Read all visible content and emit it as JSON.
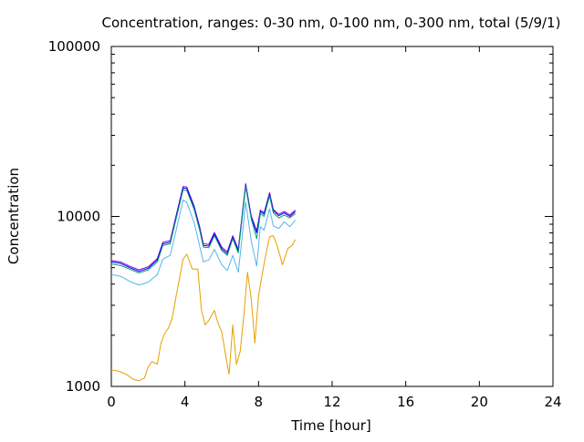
{
  "chart_data": {
    "type": "line",
    "title": "Concentration, ranges: 0-30 nm, 0-100 nm, 0-300 nm, total (5/9/1)",
    "xlabel": "Time [hour]",
    "ylabel": "Concentration",
    "xlim": [
      0,
      24
    ],
    "ylim": [
      1000,
      100000
    ],
    "yscale": "log",
    "grid": false,
    "legend": "none",
    "x_ticks": [
      0,
      4,
      8,
      12,
      16,
      20,
      24
    ],
    "x_tick_labels": [
      "0",
      "4",
      "8",
      "12",
      "16",
      "20",
      "24"
    ],
    "y_tick_labels": [
      "1000",
      "10000",
      "100000"
    ],
    "y_major_ticks": [
      1000,
      10000,
      100000
    ],
    "y_minor_ticks": [
      2000,
      3000,
      4000,
      5000,
      6000,
      7000,
      8000,
      9000,
      20000,
      30000,
      40000,
      50000,
      60000,
      70000,
      80000,
      90000
    ],
    "series": [
      {
        "color": "#9400d3",
        "x": [
          0,
          0.5,
          1.0,
          1.5,
          2.0,
          2.5,
          2.8,
          3.2,
          3.6,
          3.9,
          4.1,
          4.5,
          4.8,
          5.0,
          5.3,
          5.6,
          6.0,
          6.3,
          6.6,
          6.9,
          7.1,
          7.3,
          7.6,
          7.9,
          8.1,
          8.3,
          8.6,
          8.8,
          9.1,
          9.4,
          9.7,
          10.0
        ],
        "y": [
          5500,
          5400,
          5100,
          4850,
          5050,
          5650,
          7050,
          7200,
          11000,
          15000,
          14900,
          11500,
          8700,
          6900,
          6850,
          8050,
          6600,
          6200,
          7700,
          6400,
          10000,
          15600,
          10100,
          8200,
          10900,
          10500,
          13800,
          11000,
          10300,
          10700,
          10200,
          10900
        ]
      },
      {
        "color": "#0000ff",
        "x": [
          0,
          0.5,
          1.0,
          1.5,
          2.0,
          2.5,
          2.8,
          3.2,
          3.6,
          3.9,
          4.1,
          4.5,
          4.8,
          5.0,
          5.3,
          5.6,
          6.0,
          6.3,
          6.6,
          6.9,
          7.1,
          7.3,
          7.6,
          7.9,
          8.1,
          8.3,
          8.6,
          8.8,
          9.1,
          9.4,
          9.7,
          10.0
        ],
        "y": [
          5400,
          5300,
          5000,
          4750,
          4950,
          5550,
          6900,
          7050,
          10800,
          14700,
          14600,
          11300,
          8500,
          6750,
          6700,
          7900,
          6450,
          6050,
          7550,
          6250,
          9800,
          15300,
          9900,
          8000,
          10700,
          10300,
          13500,
          10800,
          10100,
          10500,
          10000,
          10700
        ]
      },
      {
        "color": "#009e73",
        "x": [
          0,
          0.5,
          1.0,
          1.5,
          2.0,
          2.5,
          2.8,
          3.2,
          3.6,
          3.9,
          4.1,
          4.5,
          4.8,
          5.0,
          5.3,
          5.6,
          6.0,
          6.3,
          6.6,
          6.9,
          7.1,
          7.3,
          7.6,
          7.9,
          8.1,
          8.3,
          8.6,
          8.8,
          9.1,
          9.4,
          9.7,
          10.0
        ],
        "y": [
          5250,
          5150,
          4900,
          4650,
          4850,
          5400,
          6750,
          6900,
          10500,
          14300,
          14200,
          11000,
          8300,
          6600,
          6550,
          7700,
          6300,
          5900,
          7400,
          6100,
          9600,
          15000,
          9700,
          7400,
          10400,
          10000,
          13200,
          10500,
          9800,
          10200,
          9800,
          10400
        ]
      },
      {
        "color": "#56b4e9",
        "x": [
          0,
          0.5,
          1.0,
          1.5,
          2.0,
          2.5,
          2.8,
          3.2,
          3.6,
          3.9,
          4.1,
          4.5,
          4.8,
          5.0,
          5.3,
          5.6,
          6.0,
          6.3,
          6.6,
          6.9,
          7.1,
          7.3,
          7.6,
          7.9,
          8.1,
          8.3,
          8.6,
          8.8,
          9.1,
          9.4,
          9.7,
          10.0
        ],
        "y": [
          4550,
          4450,
          4150,
          3950,
          4100,
          4550,
          5600,
          5900,
          9000,
          12500,
          12100,
          9200,
          6700,
          5400,
          5550,
          6400,
          5200,
          4800,
          5900,
          4700,
          7400,
          12200,
          7200,
          5100,
          8700,
          8300,
          11100,
          8800,
          8500,
          9300,
          8700,
          9500
        ]
      },
      {
        "color": "#e69f00",
        "x": [
          0,
          0.4,
          0.8,
          1.2,
          1.5,
          1.8,
          2.0,
          2.2,
          2.5,
          2.7,
          2.9,
          3.1,
          3.3,
          3.5,
          3.7,
          3.9,
          4.1,
          4.4,
          4.7,
          4.9,
          5.1,
          5.3,
          5.6,
          5.8,
          6.0,
          6.2,
          6.4,
          6.6,
          6.8,
          7.0,
          7.2,
          7.4,
          7.6,
          7.8,
          8.0,
          8.2,
          8.4,
          8.6,
          8.8,
          9.0,
          9.3,
          9.6,
          9.8,
          10.0
        ],
        "y": [
          1250,
          1230,
          1180,
          1100,
          1080,
          1120,
          1300,
          1400,
          1350,
          1800,
          2050,
          2200,
          2500,
          3300,
          4300,
          5600,
          6000,
          4900,
          4900,
          2800,
          2300,
          2450,
          2800,
          2350,
          2100,
          1550,
          1180,
          2300,
          1350,
          1600,
          2600,
          4700,
          3300,
          1800,
          3400,
          4600,
          6000,
          7600,
          7700,
          6800,
          5200,
          6500,
          6700,
          7300
        ]
      }
    ]
  }
}
